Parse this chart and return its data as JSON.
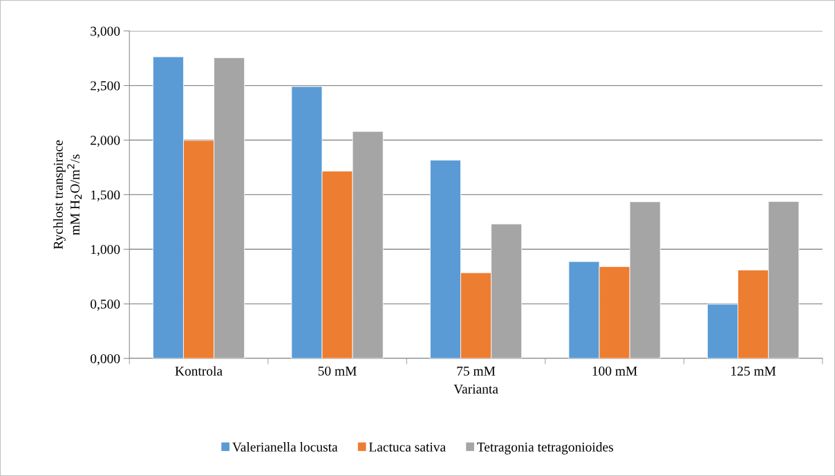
{
  "chart_data": {
    "type": "bar",
    "xlabel": "Varianta",
    "ylabel": "Rychlost transpirace\nmM H$_{2}$O/m$^{2}$/s",
    "categories": [
      "Kontrola",
      "50 mM",
      "75 mM",
      "100 mM",
      "125 mM"
    ],
    "series": [
      {
        "name": "Valerianella locusta",
        "color": "#5b9bd5",
        "values": [
          2.763,
          2.491,
          1.817,
          0.887,
          0.497
        ]
      },
      {
        "name": "Lactuca sativa",
        "color": "#ed7d31",
        "values": [
          1.997,
          1.716,
          0.785,
          0.841,
          0.81
        ]
      },
      {
        "name": "Tetragonia tetragonioides",
        "color": "#a5a5a5",
        "values": [
          2.755,
          2.079,
          1.231,
          1.435,
          1.438
        ]
      }
    ],
    "ylim": [
      0,
      3
    ],
    "yticks": [
      {
        "value": 0,
        "label": "0,000"
      },
      {
        "value": 0.5,
        "label": "0,500"
      },
      {
        "value": 1,
        "label": "1,000"
      },
      {
        "value": 1.5,
        "label": "1,500"
      },
      {
        "value": 2,
        "label": "2,000"
      },
      {
        "value": 2.5,
        "label": "2,500"
      },
      {
        "value": 3,
        "label": "3,000"
      }
    ],
    "grid": "y",
    "legend": "bottom"
  }
}
